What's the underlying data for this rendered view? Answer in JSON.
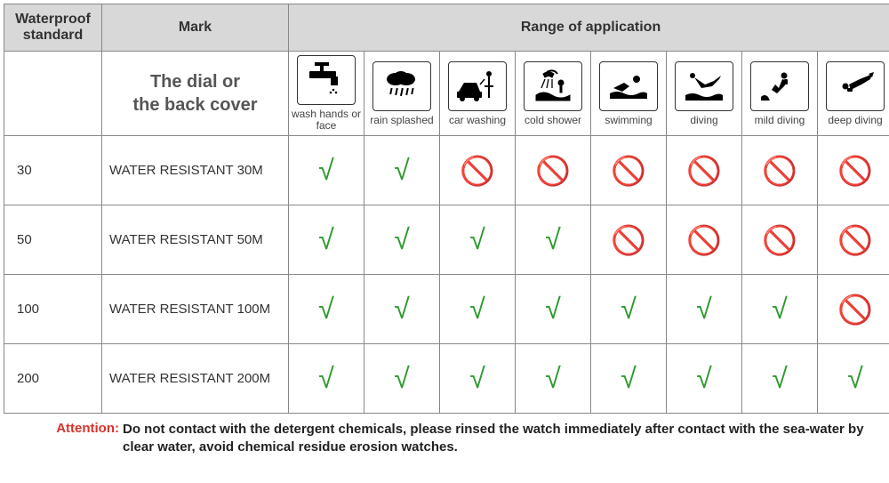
{
  "type": "table",
  "header": {
    "standard": "Waterproof standard",
    "mark": "Mark",
    "range": "Range of application",
    "dial_text": "The dial or\nthe back cover"
  },
  "applications": [
    {
      "key": "wash",
      "label": "wash hands or face"
    },
    {
      "key": "rain",
      "label": "rain splashed"
    },
    {
      "key": "car",
      "label": "car washing"
    },
    {
      "key": "shower",
      "label": "cold shower"
    },
    {
      "key": "swim",
      "label": "swimming"
    },
    {
      "key": "dive",
      "label": "diving"
    },
    {
      "key": "mild",
      "label": "mild diving"
    },
    {
      "key": "deep",
      "label": "deep diving"
    }
  ],
  "rows": [
    {
      "standard": "30",
      "mark": "WATER RESISTANT  30M",
      "values": [
        "yes",
        "yes",
        "no",
        "no",
        "no",
        "no",
        "no",
        "no"
      ]
    },
    {
      "standard": "50",
      "mark": "WATER RESISTANT 50M",
      "values": [
        "yes",
        "yes",
        "yes",
        "yes",
        "no",
        "no",
        "no",
        "no"
      ]
    },
    {
      "standard": "100",
      "mark": "WATER RESISTANT  100M",
      "values": [
        "yes",
        "yes",
        "yes",
        "yes",
        "yes",
        "yes",
        "yes",
        "no"
      ]
    },
    {
      "standard": "200",
      "mark": "WATER RESISTANT  200M",
      "values": [
        "yes",
        "yes",
        "yes",
        "yes",
        "yes",
        "yes",
        "yes",
        "yes"
      ]
    }
  ],
  "symbols": {
    "yes": "√",
    "no": "🚫"
  },
  "colors": {
    "yes": "#2e9b2e",
    "no": "#d6332a",
    "header_bg": "#d8d8d8",
    "border": "#888888",
    "text": "#333333",
    "attention": "#d6332a"
  },
  "fonts": {
    "header_size_pt": 12,
    "dial_size_pt": 15,
    "app_label_size_pt": 9,
    "cell_size_pt": 11,
    "symbol_size_pt": 24,
    "attn_size_pt": 11
  },
  "attention": {
    "label": "Attention:",
    "text": "Do not contact with the detergent chemicals, please rinsed the watch immediately after contact with the sea-water by clear water, avoid chemical residue erosion watches."
  }
}
